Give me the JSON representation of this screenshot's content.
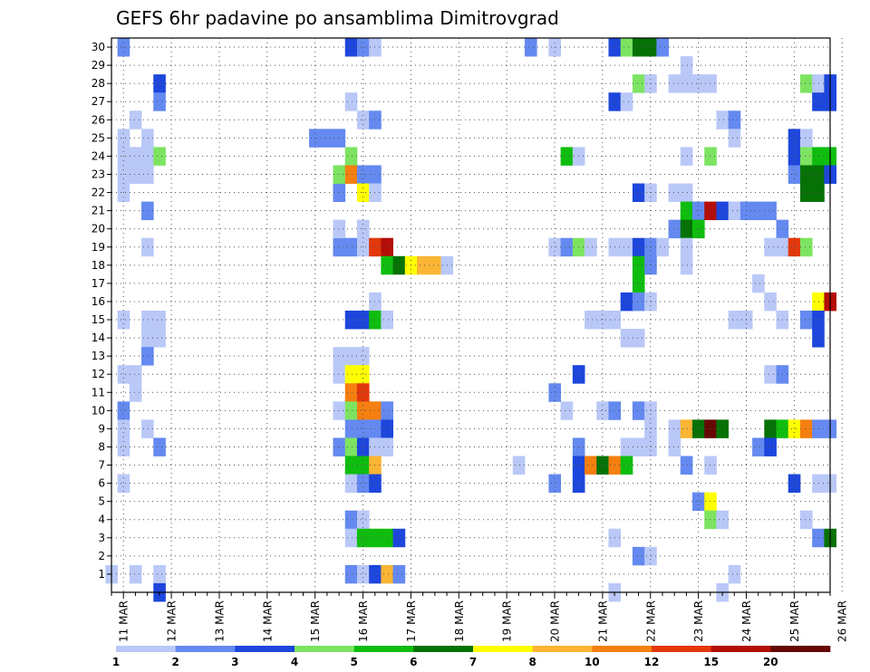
{
  "chart_data": {
    "type": "heatmap",
    "title": "GEFS 6hr padavine po ansamblima Dimitrovgrad",
    "xlabel": "",
    "ylabel": "",
    "x_ticks": [
      "11 MAR",
      "12 MAR",
      "13 MAR",
      "14 MAR",
      "15 MAR",
      "16 MAR",
      "17 MAR",
      "18 MAR",
      "19 MAR",
      "20 MAR",
      "21 MAR",
      "22 MAR",
      "23 MAR",
      "24 MAR",
      "25 MAR",
      "26 MAR"
    ],
    "y_ticks": [
      1,
      2,
      3,
      4,
      5,
      6,
      7,
      8,
      9,
      10,
      11,
      12,
      13,
      14,
      15,
      16,
      17,
      18,
      19,
      20,
      21,
      22,
      23,
      24,
      25,
      26,
      27,
      28,
      29,
      30
    ],
    "ylim": [
      0,
      30
    ],
    "time_steps": 60,
    "grid": true,
    "legend": {
      "position": "bottom",
      "labels": [
        "1",
        "2",
        "3",
        "4",
        "5",
        "6",
        "7",
        "8",
        "10",
        "12",
        "15",
        "20"
      ],
      "colors": [
        "#b9c8f7",
        "#6489f0",
        "#1d46dc",
        "#7de461",
        "#0fbd0f",
        "#067206",
        "#ffff00",
        "#fbb534",
        "#f57f10",
        "#e2380c",
        "#b30e07",
        "#650803"
      ]
    },
    "cells": [
      [
        0,
        1,
        0
      ],
      [
        1,
        30,
        1
      ],
      [
        1,
        25,
        0
      ],
      [
        1,
        24,
        0
      ],
      [
        1,
        23,
        0
      ],
      [
        1,
        22,
        0
      ],
      [
        1,
        15,
        0
      ],
      [
        1,
        12,
        0
      ],
      [
        1,
        10,
        1
      ],
      [
        1,
        9,
        0
      ],
      [
        1,
        8,
        0
      ],
      [
        1,
        6,
        0
      ],
      [
        2,
        26,
        0
      ],
      [
        2,
        24,
        0
      ],
      [
        2,
        23,
        0
      ],
      [
        2,
        12,
        0
      ],
      [
        2,
        11,
        0
      ],
      [
        2,
        1,
        0
      ],
      [
        3,
        25,
        0
      ],
      [
        3,
        24,
        0
      ],
      [
        3,
        23,
        0
      ],
      [
        3,
        21,
        1
      ],
      [
        3,
        19,
        0
      ],
      [
        3,
        15,
        0
      ],
      [
        3,
        14,
        0
      ],
      [
        3,
        13,
        1
      ],
      [
        3,
        9,
        0
      ],
      [
        4,
        28,
        2
      ],
      [
        4,
        27,
        1
      ],
      [
        4,
        24,
        3
      ],
      [
        4,
        15,
        0
      ],
      [
        4,
        14,
        0
      ],
      [
        4,
        8,
        1
      ],
      [
        4,
        1,
        0
      ],
      [
        4,
        0,
        2
      ],
      [
        17,
        25,
        1
      ],
      [
        18,
        25,
        1
      ],
      [
        19,
        25,
        1
      ],
      [
        19,
        22,
        1
      ],
      [
        19,
        19,
        1
      ],
      [
        19,
        20,
        0
      ],
      [
        19,
        13,
        0
      ],
      [
        19,
        12,
        0
      ],
      [
        19,
        10,
        0
      ],
      [
        19,
        8,
        1
      ],
      [
        19,
        23,
        3
      ],
      [
        20,
        30,
        2
      ],
      [
        20,
        27,
        0
      ],
      [
        20,
        24,
        3
      ],
      [
        20,
        23,
        8
      ],
      [
        20,
        19,
        1
      ],
      [
        20,
        15,
        2
      ],
      [
        20,
        13,
        0
      ],
      [
        20,
        12,
        6
      ],
      [
        20,
        11,
        8
      ],
      [
        20,
        10,
        3
      ],
      [
        20,
        9,
        1
      ],
      [
        20,
        8,
        3
      ],
      [
        20,
        7,
        4
      ],
      [
        20,
        6,
        0
      ],
      [
        20,
        4,
        1
      ],
      [
        20,
        3,
        0
      ],
      [
        20,
        1,
        1
      ],
      [
        21,
        30,
        1
      ],
      [
        21,
        26,
        0
      ],
      [
        21,
        23,
        1
      ],
      [
        21,
        22,
        6
      ],
      [
        21,
        20,
        0
      ],
      [
        21,
        19,
        0
      ],
      [
        21,
        15,
        2
      ],
      [
        21,
        13,
        0
      ],
      [
        21,
        12,
        6
      ],
      [
        21,
        11,
        9
      ],
      [
        21,
        10,
        8
      ],
      [
        21,
        9,
        1
      ],
      [
        21,
        8,
        2
      ],
      [
        21,
        7,
        4
      ],
      [
        21,
        6,
        1
      ],
      [
        21,
        4,
        0
      ],
      [
        21,
        3,
        4
      ],
      [
        21,
        1,
        0
      ],
      [
        22,
        30,
        0
      ],
      [
        22,
        26,
        1
      ],
      [
        22,
        23,
        1
      ],
      [
        22,
        22,
        0
      ],
      [
        22,
        19,
        9
      ],
      [
        22,
        16,
        0
      ],
      [
        22,
        15,
        4
      ],
      [
        22,
        10,
        8
      ],
      [
        22,
        9,
        1
      ],
      [
        22,
        8,
        0
      ],
      [
        22,
        7,
        7
      ],
      [
        22,
        6,
        2
      ],
      [
        22,
        3,
        4
      ],
      [
        22,
        1,
        2
      ],
      [
        23,
        19,
        10
      ],
      [
        23,
        18,
        4
      ],
      [
        23,
        15,
        0
      ],
      [
        23,
        10,
        1
      ],
      [
        23,
        9,
        2
      ],
      [
        23,
        8,
        0
      ],
      [
        23,
        3,
        4
      ],
      [
        23,
        1,
        7
      ],
      [
        24,
        18,
        5
      ],
      [
        24,
        3,
        2
      ],
      [
        24,
        1,
        1
      ],
      [
        25,
        18,
        6
      ],
      [
        26,
        18,
        7
      ],
      [
        27,
        18,
        7
      ],
      [
        28,
        18,
        0
      ],
      [
        34,
        7,
        0
      ],
      [
        35,
        30,
        1
      ],
      [
        37,
        30,
        0
      ],
      [
        37,
        19,
        0
      ],
      [
        37,
        11,
        1
      ],
      [
        37,
        6,
        1
      ],
      [
        38,
        24,
        4
      ],
      [
        38,
        19,
        1
      ],
      [
        38,
        10,
        0
      ],
      [
        39,
        24,
        0
      ],
      [
        39,
        19,
        3
      ],
      [
        39,
        8,
        1
      ],
      [
        39,
        7,
        2
      ],
      [
        39,
        6,
        2
      ],
      [
        39,
        12,
        2
      ],
      [
        40,
        19,
        0
      ],
      [
        40,
        15,
        0
      ],
      [
        40,
        7,
        8
      ],
      [
        41,
        15,
        0
      ],
      [
        41,
        10,
        0
      ],
      [
        41,
        7,
        5
      ],
      [
        42,
        30,
        2
      ],
      [
        42,
        27,
        2
      ],
      [
        42,
        19,
        0
      ],
      [
        42,
        15,
        0
      ],
      [
        42,
        10,
        1
      ],
      [
        42,
        7,
        8
      ],
      [
        42,
        3,
        0
      ],
      [
        42,
        0,
        0
      ],
      [
        43,
        30,
        3
      ],
      [
        43,
        27,
        0
      ],
      [
        43,
        19,
        0
      ],
      [
        43,
        16,
        2
      ],
      [
        43,
        14,
        0
      ],
      [
        43,
        8,
        0
      ],
      [
        43,
        7,
        4
      ],
      [
        44,
        30,
        5
      ],
      [
        44,
        28,
        3
      ],
      [
        44,
        22,
        2
      ],
      [
        44,
        19,
        2
      ],
      [
        44,
        18,
        4
      ],
      [
        44,
        17,
        4
      ],
      [
        44,
        16,
        1
      ],
      [
        44,
        14,
        0
      ],
      [
        44,
        10,
        1
      ],
      [
        44,
        8,
        0
      ],
      [
        44,
        2,
        1
      ],
      [
        45,
        30,
        5
      ],
      [
        45,
        28,
        0
      ],
      [
        45,
        22,
        0
      ],
      [
        45,
        19,
        1
      ],
      [
        45,
        18,
        1
      ],
      [
        45,
        16,
        0
      ],
      [
        45,
        10,
        0
      ],
      [
        45,
        9,
        0
      ],
      [
        45,
        8,
        0
      ],
      [
        45,
        2,
        0
      ],
      [
        46,
        30,
        1
      ],
      [
        46,
        19,
        0
      ],
      [
        47,
        28,
        0
      ],
      [
        47,
        22,
        0
      ],
      [
        47,
        20,
        1
      ],
      [
        47,
        9,
        0
      ],
      [
        47,
        8,
        0
      ],
      [
        48,
        29,
        0
      ],
      [
        48,
        28,
        0
      ],
      [
        48,
        24,
        0
      ],
      [
        48,
        22,
        0
      ],
      [
        48,
        21,
        4
      ],
      [
        48,
        20,
        5
      ],
      [
        48,
        19,
        0
      ],
      [
        48,
        18,
        0
      ],
      [
        48,
        9,
        7
      ],
      [
        48,
        7,
        1
      ],
      [
        49,
        28,
        0
      ],
      [
        49,
        21,
        1
      ],
      [
        49,
        20,
        4
      ],
      [
        49,
        9,
        5
      ],
      [
        49,
        5,
        1
      ],
      [
        50,
        28,
        0
      ],
      [
        50,
        24,
        3
      ],
      [
        50,
        21,
        10
      ],
      [
        50,
        9,
        11
      ],
      [
        50,
        7,
        0
      ],
      [
        50,
        5,
        6
      ],
      [
        50,
        4,
        3
      ],
      [
        51,
        26,
        0
      ],
      [
        51,
        21,
        2
      ],
      [
        51,
        9,
        5
      ],
      [
        51,
        4,
        0
      ],
      [
        51,
        0,
        0
      ],
      [
        52,
        26,
        1
      ],
      [
        52,
        25,
        0
      ],
      [
        52,
        21,
        0
      ],
      [
        52,
        15,
        0
      ],
      [
        52,
        1,
        0
      ],
      [
        53,
        21,
        1
      ],
      [
        53,
        15,
        0
      ],
      [
        54,
        21,
        1
      ],
      [
        54,
        17,
        0
      ],
      [
        54,
        8,
        1
      ],
      [
        55,
        21,
        1
      ],
      [
        55,
        19,
        0
      ],
      [
        55,
        16,
        0
      ],
      [
        55,
        12,
        0
      ],
      [
        55,
        9,
        5
      ],
      [
        55,
        8,
        2
      ],
      [
        56,
        20,
        1
      ],
      [
        56,
        19,
        0
      ],
      [
        56,
        15,
        0
      ],
      [
        56,
        12,
        1
      ],
      [
        56,
        9,
        4
      ],
      [
        57,
        25,
        2
      ],
      [
        57,
        24,
        2
      ],
      [
        57,
        23,
        1
      ],
      [
        57,
        19,
        9
      ],
      [
        57,
        9,
        6
      ],
      [
        57,
        6,
        2
      ],
      [
        58,
        28,
        3
      ],
      [
        58,
        25,
        0
      ],
      [
        58,
        24,
        3
      ],
      [
        58,
        23,
        5
      ],
      [
        58,
        22,
        5
      ],
      [
        58,
        19,
        3
      ],
      [
        58,
        15,
        1
      ],
      [
        58,
        9,
        8
      ],
      [
        58,
        4,
        0
      ],
      [
        59,
        28,
        0
      ],
      [
        59,
        27,
        2
      ],
      [
        59,
        24,
        4
      ],
      [
        59,
        23,
        5
      ],
      [
        59,
        22,
        5
      ],
      [
        59,
        16,
        6
      ],
      [
        59,
        15,
        2
      ],
      [
        59,
        14,
        2
      ],
      [
        59,
        9,
        1
      ],
      [
        59,
        6,
        0
      ],
      [
        59,
        3,
        1
      ],
      [
        60,
        28,
        2
      ],
      [
        60,
        27,
        2
      ],
      [
        60,
        24,
        4
      ],
      [
        60,
        23,
        2
      ],
      [
        60,
        16,
        10
      ],
      [
        60,
        9,
        1
      ],
      [
        60,
        6,
        0
      ],
      [
        60,
        3,
        5
      ]
    ]
  }
}
